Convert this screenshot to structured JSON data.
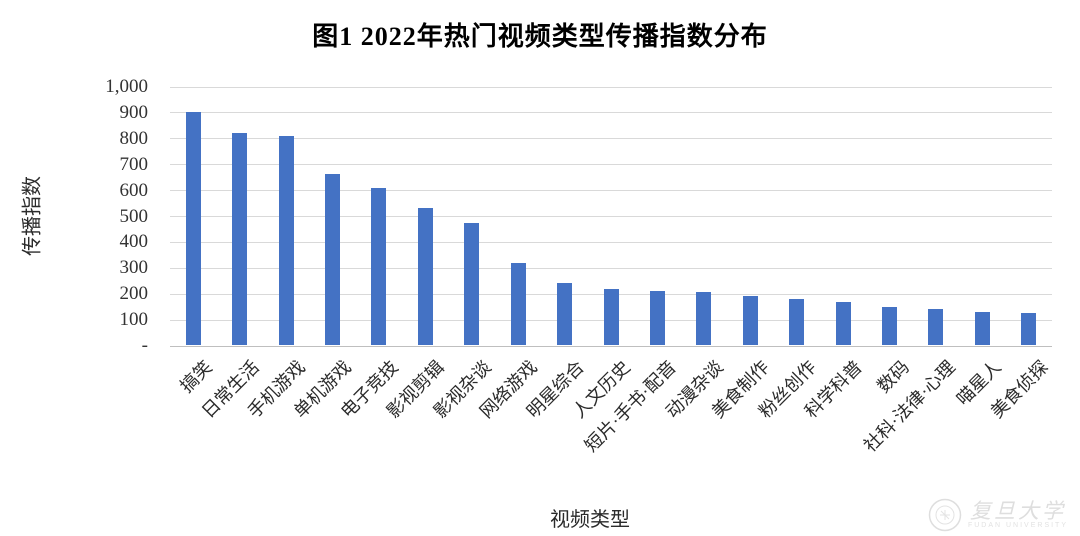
{
  "chart_data": {
    "type": "bar",
    "title": "图1 2022年热门视频类型传播指数分布",
    "xlabel": "视频类型",
    "ylabel": "传播指数",
    "categories": [
      "搞笑",
      "日常生活",
      "手机游戏",
      "单机游戏",
      "电子竞技",
      "影视剪辑",
      "影视杂谈",
      "网络游戏",
      "明星综合",
      "人文历史",
      "短片·手书·配音",
      "动漫杂谈",
      "美食制作",
      "粉丝创作",
      "科学科普",
      "数码",
      "社科·法律·心理",
      "喵星人",
      "美食侦探"
    ],
    "values": [
      900,
      818,
      806,
      660,
      606,
      530,
      472,
      315,
      240,
      218,
      208,
      205,
      190,
      178,
      168,
      148,
      138,
      126,
      122
    ],
    "ylim": [
      0,
      1000
    ],
    "ytick_step": 100,
    "ytick_labels_top_to_bottom": [
      "1,000",
      "900",
      "800",
      "700",
      "600",
      "500",
      "400",
      "300",
      "200",
      "100",
      "-"
    ],
    "grid": true,
    "legend_position": "none",
    "bar_color": "#4472C4",
    "gridline_color": "#D9D9D9",
    "axis_line_color": "#BFBFBF"
  },
  "watermark": {
    "cn": "复旦大学",
    "en": "FUDAN UNIVERSITY"
  }
}
